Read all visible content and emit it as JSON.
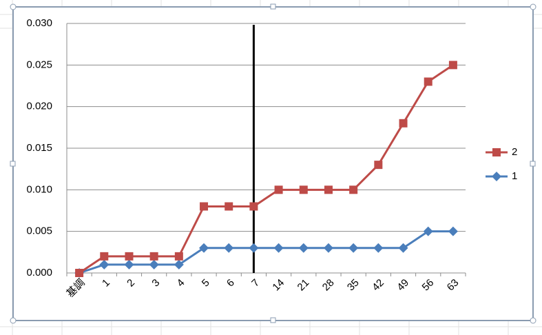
{
  "chart_data": {
    "type": "line",
    "categories": [
      "基調",
      "1",
      "2",
      "3",
      "4",
      "5",
      "6",
      "7",
      "14",
      "21",
      "28",
      "35",
      "42",
      "49",
      "56",
      "63"
    ],
    "series": [
      {
        "name": "2",
        "color": "#be4b48",
        "marker": "square",
        "values": [
          0,
          0.002,
          0.002,
          0.002,
          0.002,
          0.008,
          0.008,
          0.008,
          0.01,
          0.01,
          0.01,
          0.01,
          0.013,
          0.018,
          0.023,
          0.025
        ]
      },
      {
        "name": "1",
        "color": "#4a7ebb",
        "marker": "diamond",
        "values": [
          0,
          0.001,
          0.001,
          0.001,
          0.001,
          0.003,
          0.003,
          0.003,
          0.003,
          0.003,
          0.003,
          0.003,
          0.003,
          0.003,
          0.005,
          0.005
        ]
      }
    ],
    "ylim": [
      0,
      0.03
    ],
    "yticks": [
      {
        "value": 0,
        "label": "0.000"
      },
      {
        "value": 0.005,
        "label": "0.005"
      },
      {
        "value": 0.01,
        "label": "0.010"
      },
      {
        "value": 0.015,
        "label": "0.015"
      },
      {
        "value": 0.02,
        "label": "0.020"
      },
      {
        "value": 0.025,
        "label": "0.025"
      },
      {
        "value": 0.03,
        "label": "0.030"
      }
    ],
    "grid": true,
    "legend": "right"
  }
}
